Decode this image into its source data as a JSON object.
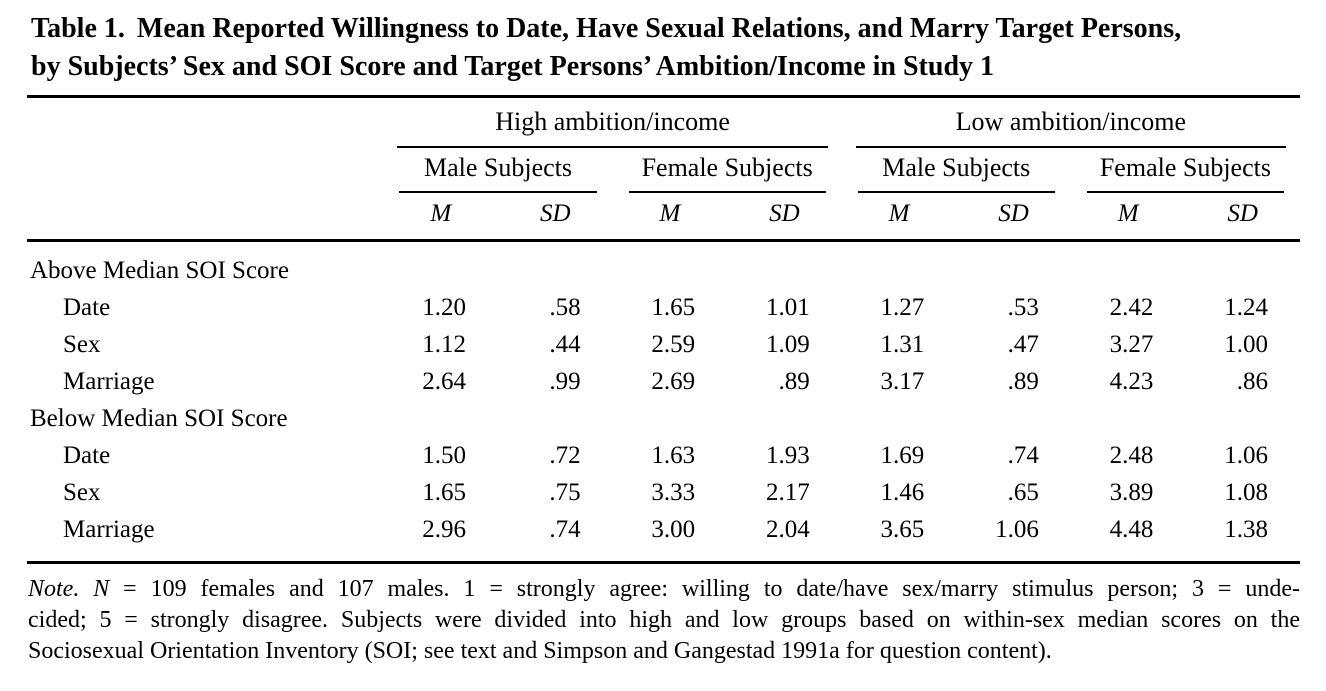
{
  "title": {
    "label": "Table 1.",
    "line1_rest": "Mean Reported Willingness to Date, Have Sexual Relations, and Marry Target Persons,",
    "line2": "by Subjects’ Sex and SOI Score and Target Persons’ Ambition/Income in Study 1"
  },
  "table": {
    "group_headers": [
      "High ambition/income",
      "Low ambition/income"
    ],
    "subject_headers": [
      "Male Subjects",
      "Female Subjects",
      "Male Subjects",
      "Female Subjects"
    ],
    "stat_headers": [
      "M",
      "SD",
      "M",
      "SD",
      "M",
      "SD",
      "M",
      "SD"
    ],
    "sections": [
      {
        "label": "Above Median SOI Score",
        "rows": [
          {
            "label": "Date",
            "values": [
              "1.20",
              ".58",
              "1.65",
              "1.01",
              "1.27",
              ".53",
              "2.42",
              "1.24"
            ]
          },
          {
            "label": "Sex",
            "values": [
              "1.12",
              ".44",
              "2.59",
              "1.09",
              "1.31",
              ".47",
              "3.27",
              "1.00"
            ]
          },
          {
            "label": "Marriage",
            "values": [
              "2.64",
              ".99",
              "2.69",
              ".89",
              "3.17",
              ".89",
              "4.23",
              ".86"
            ]
          }
        ]
      },
      {
        "label": "Below Median SOI Score",
        "rows": [
          {
            "label": "Date",
            "values": [
              "1.50",
              ".72",
              "1.63",
              "1.93",
              "1.69",
              ".74",
              "2.48",
              "1.06"
            ]
          },
          {
            "label": "Sex",
            "values": [
              "1.65",
              ".75",
              "3.33",
              "2.17",
              "1.46",
              ".65",
              "3.89",
              "1.08"
            ]
          },
          {
            "label": "Marriage",
            "values": [
              "2.96",
              ".74",
              "3.00",
              "2.04",
              "3.65",
              "1.06",
              "4.48",
              "1.38"
            ]
          }
        ]
      }
    ]
  },
  "note": {
    "italic_lead": "Note. N",
    "line1_rest": " = 109 females and 107 males. 1 = strongly agree: willing to date/have sex/marry stimulus person; 3 = unde-",
    "line2": "cided; 5 = strongly disagree. Subjects were divided into high and low groups based on within-sex median scores on the",
    "line3": "Sociosexual Orientation Inventory (SOI; see text and Simpson and Gangestad 1991a for question content)."
  }
}
